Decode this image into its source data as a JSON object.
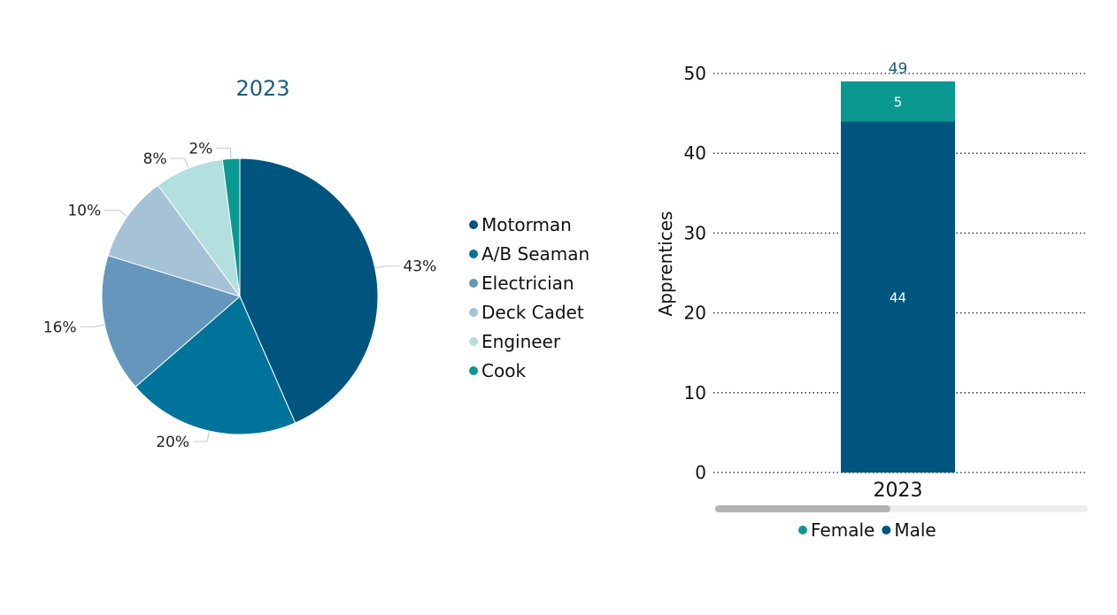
{
  "chart_data": [
    {
      "type": "pie",
      "title": "2023",
      "categories": [
        "Motorman",
        "A/B Seaman",
        "Electrician",
        "Deck Cadet",
        "Engineer",
        "Cook"
      ],
      "values": [
        43,
        20,
        16,
        10,
        8,
        2
      ],
      "value_labels": [
        "43%",
        "20%",
        "16%",
        "10%",
        "8%",
        "2%"
      ],
      "colors": [
        "#00557f",
        "#00739a",
        "#6497bb",
        "#a6c2d7",
        "#b3dfdf",
        "#0b9891"
      ],
      "legend_position": "right"
    },
    {
      "type": "bar",
      "stacked": true,
      "categories": [
        "2023"
      ],
      "series": [
        {
          "name": "Male",
          "values": [
            44
          ],
          "color": "#00557f"
        },
        {
          "name": "Female",
          "values": [
            5
          ],
          "color": "#0b9891"
        }
      ],
      "totals": [
        49
      ],
      "ylabel": "Apprentices",
      "ylim": [
        0,
        50
      ],
      "yticks": [
        0,
        10,
        20,
        30,
        40,
        50
      ],
      "grid": true,
      "legend": [
        "Female",
        "Male"
      ],
      "legend_position": "bottom",
      "scrollbar_fraction": 0.47
    }
  ]
}
